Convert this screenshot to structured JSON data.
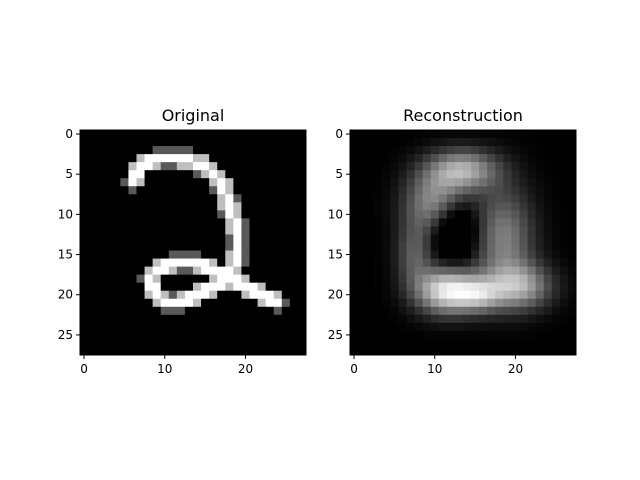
{
  "chart_data": [
    {
      "type": "heatmap",
      "title": "Original",
      "colormap": "gray",
      "shape": [
        28,
        28
      ],
      "xticks": [
        0,
        10,
        20
      ],
      "yticks": [
        0,
        5,
        10,
        15,
        20,
        25
      ],
      "xlim": [
        -0.5,
        27.5
      ],
      "ylim": [
        27.5,
        -0.5
      ],
      "strokes": [
        {
          "points": [
            [
              6,
              6
            ],
            [
              7,
              4
            ],
            [
              9,
              3
            ],
            [
              12,
              3
            ],
            [
              15,
              4
            ],
            [
              17,
              6
            ],
            [
              18,
              9
            ],
            [
              19,
              12
            ],
            [
              19,
              15
            ],
            [
              18,
              18
            ],
            [
              16,
              19
            ],
            [
              14,
              20
            ],
            [
              12,
              21
            ],
            [
              10,
              21
            ],
            [
              9,
              20
            ],
            [
              8,
              18
            ],
            [
              9,
              17
            ],
            [
              11,
              16
            ],
            [
              14,
              16
            ],
            [
              16,
              17
            ],
            [
              18,
              18
            ],
            [
              20,
              19
            ],
            [
              22,
              20
            ],
            [
              24,
              21
            ]
          ],
          "intensity": 1.0
        }
      ]
    },
    {
      "type": "heatmap",
      "title": "Reconstruction",
      "colormap": "gray",
      "shape": [
        28,
        28
      ],
      "xticks": [
        0,
        10,
        20
      ],
      "yticks": [
        0,
        5,
        10,
        15,
        20,
        25
      ],
      "xlim": [
        -0.5,
        27.5
      ],
      "ylim": [
        27.5,
        -0.5
      ],
      "blobs": [
        {
          "cx": 11.5,
          "cy": 19.5,
          "sx": 2.6,
          "sy": 2.0,
          "amp": 0.9
        },
        {
          "cx": 13.5,
          "cy": 4.5,
          "sx": 3.0,
          "sy": 1.8,
          "amp": 0.65
        },
        {
          "cx": 18.5,
          "cy": 13.0,
          "sx": 2.6,
          "sy": 4.5,
          "amp": 0.5
        },
        {
          "cx": 10.0,
          "cy": 8.5,
          "sx": 2.6,
          "sy": 2.8,
          "amp": 0.55
        },
        {
          "cx": 20.5,
          "cy": 19.0,
          "sx": 2.8,
          "sy": 2.0,
          "amp": 0.6
        },
        {
          "cx": 7.5,
          "cy": 15.0,
          "sx": 1.6,
          "sy": 3.0,
          "amp": 0.35
        },
        {
          "cx": 15.5,
          "cy": 20.0,
          "sx": 2.0,
          "sy": 1.5,
          "amp": 0.5
        }
      ],
      "holes": [
        {
          "cx": 12.5,
          "cy": 12.0,
          "sx": 2.0,
          "sy": 2.6,
          "amp": 0.45
        }
      ]
    }
  ]
}
